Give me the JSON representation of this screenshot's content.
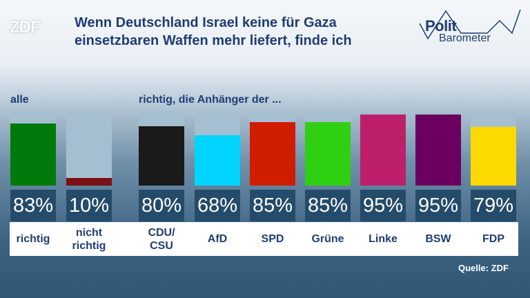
{
  "logo": "ZDF",
  "title_lines": [
    "Wenn Deutschland Israel keine für Gaza",
    "einsetzbaren Waffen mehr liefert, finde ich"
  ],
  "brand": {
    "word1": "Polit",
    "word2": "Barometer"
  },
  "section_all": "alle",
  "section_parties": "richtig, die Anhänger der ...",
  "source": "Quelle: ZDF",
  "chart_data": {
    "type": "bar",
    "ylim": [
      0,
      100
    ],
    "categories": [
      "richtig",
      "nicht richtig",
      "CDU/ CSU",
      "AfD",
      "SPD",
      "Grüne",
      "Linke",
      "BSW",
      "FDP"
    ],
    "values": [
      83,
      10,
      80,
      68,
      85,
      85,
      95,
      95,
      79
    ],
    "value_labels": [
      "83%",
      "10%",
      "80%",
      "68%",
      "85%",
      "85%",
      "95%",
      "95%",
      "79%"
    ],
    "colors": [
      "#007a0b",
      "#7a0f14",
      "#1a1a1a",
      "#00d4ff",
      "#d01d00",
      "#2fcf12",
      "#bd1f6b",
      "#6b0060",
      "#fcd900"
    ]
  }
}
